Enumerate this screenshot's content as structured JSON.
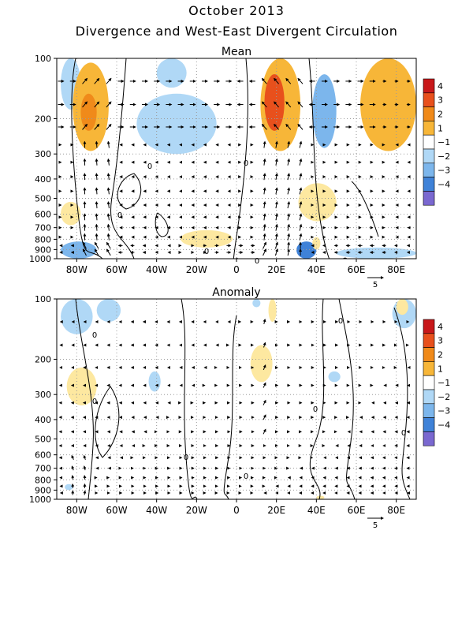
{
  "header": {
    "title": "October 2013",
    "subtitle": "Divergence and West-East Divergent Circulation"
  },
  "colors": {
    "contour_line": "#000000",
    "grid_dotted": "#9a9a9a",
    "divergence_positive": [
      "#fde8a0",
      "#f7b638",
      "#f08a1a",
      "#e8501c",
      "#c8181a"
    ],
    "divergence_negative": [
      "#b0d8f6",
      "#7cb6ec",
      "#3f82d8",
      "#1e4fc2",
      "#7a68d0"
    ]
  },
  "chart_data": [
    {
      "type": "heatmap",
      "title": "Mean",
      "x_ticks": [
        "80W",
        "60W",
        "40W",
        "20W",
        "0",
        "20E",
        "40E",
        "60E",
        "80E"
      ],
      "x_values": [
        -80,
        -60,
        -40,
        -20,
        0,
        20,
        40,
        60,
        80
      ],
      "xlim": [
        -90,
        90
      ],
      "y_ticks": [
        "100",
        "200",
        "300",
        "400",
        "500",
        "600",
        "700",
        "800",
        "900",
        "1000"
      ],
      "y_values": [
        100,
        200,
        300,
        400,
        500,
        600,
        700,
        800,
        900,
        1000
      ],
      "ylim": [
        1000,
        100
      ],
      "y_scale": "log",
      "vector_reference": "5",
      "colorbar": {
        "labels": [
          "4",
          "3",
          "2",
          "1",
          "−1",
          "−2",
          "−3",
          "−4"
        ],
        "levels": [
          4,
          3,
          2,
          1,
          -1,
          -2,
          -3,
          -4
        ]
      },
      "contour_labels": [
        "0",
        "0",
        "0",
        "0",
        "0"
      ],
      "shaded_regions": [
        {
          "sign": "negative",
          "lon": [
            -88,
            -78
          ],
          "lev": [
            100,
            180
          ],
          "level": -1
        },
        {
          "sign": "positive",
          "lon": [
            -82,
            -64
          ],
          "lev": [
            105,
            290
          ],
          "level": 2
        },
        {
          "sign": "positive",
          "lon": [
            -78,
            -70
          ],
          "lev": [
            150,
            230
          ],
          "level": 3
        },
        {
          "sign": "negative",
          "lon": [
            -50,
            -10
          ],
          "lev": [
            150,
            300
          ],
          "level": -1
        },
        {
          "sign": "negative",
          "lon": [
            -40,
            -25
          ],
          "lev": [
            100,
            140
          ],
          "level": -1
        },
        {
          "sign": "positive",
          "lon": [
            12,
            32
          ],
          "lev": [
            100,
            290
          ],
          "level": 2
        },
        {
          "sign": "positive",
          "lon": [
            14,
            24
          ],
          "lev": [
            120,
            230
          ],
          "level": 4
        },
        {
          "sign": "negative",
          "lon": [
            38,
            50
          ],
          "lev": [
            120,
            280
          ],
          "level": -2
        },
        {
          "sign": "positive",
          "lon": [
            62,
            90
          ],
          "lev": [
            100,
            290
          ],
          "level": 2
        },
        {
          "sign": "positive",
          "lon": [
            31,
            50
          ],
          "lev": [
            420,
            650
          ],
          "level": 1
        },
        {
          "sign": "positive",
          "lon": [
            -88,
            -78
          ],
          "lev": [
            520,
            680
          ],
          "level": 1
        },
        {
          "sign": "positive",
          "lon": [
            -28,
            -2
          ],
          "lev": [
            720,
            880
          ],
          "level": 1
        },
        {
          "sign": "negative",
          "lon": [
            -88,
            -70
          ],
          "lev": [
            820,
            1000
          ],
          "level": -2
        },
        {
          "sign": "negative",
          "lon": [
            30,
            40
          ],
          "lev": [
            820,
            1000
          ],
          "level": -3
        },
        {
          "sign": "negative",
          "lon": [
            50,
            90
          ],
          "lev": [
            880,
            1000
          ],
          "level": -1
        },
        {
          "sign": "positive",
          "lon": [
            38,
            42
          ],
          "lev": [
            780,
            900
          ],
          "level": 1
        }
      ]
    },
    {
      "type": "heatmap",
      "title": "Anomaly",
      "x_ticks": [
        "80W",
        "60W",
        "40W",
        "20W",
        "0",
        "20E",
        "40E",
        "60E",
        "80E"
      ],
      "x_values": [
        -80,
        -60,
        -40,
        -20,
        0,
        20,
        40,
        60,
        80
      ],
      "xlim": [
        -90,
        90
      ],
      "y_ticks": [
        "100",
        "200",
        "300",
        "400",
        "500",
        "600",
        "700",
        "800",
        "900",
        "1000"
      ],
      "y_values": [
        100,
        200,
        300,
        400,
        500,
        600,
        700,
        800,
        900,
        1000
      ],
      "ylim": [
        1000,
        100
      ],
      "y_scale": "log",
      "vector_reference": "5",
      "colorbar": {
        "labels": [
          "4",
          "3",
          "2",
          "1",
          "−1",
          "−2",
          "−3",
          "−4"
        ],
        "levels": [
          4,
          3,
          2,
          1,
          -1,
          -2,
          -3,
          -4
        ]
      },
      "contour_labels": [
        "0",
        "0",
        "0",
        "0",
        "0",
        "0",
        "0"
      ],
      "shaded_regions": [
        {
          "sign": "negative",
          "lon": [
            -88,
            -72
          ],
          "lev": [
            100,
            150
          ],
          "level": -1
        },
        {
          "sign": "negative",
          "lon": [
            -70,
            -58
          ],
          "lev": [
            100,
            130
          ],
          "level": -1
        },
        {
          "sign": "positive",
          "lon": [
            -85,
            -70
          ],
          "lev": [
            220,
            340
          ],
          "level": 1
        },
        {
          "sign": "negative",
          "lon": [
            -44,
            -38
          ],
          "lev": [
            230,
            290
          ],
          "level": -1
        },
        {
          "sign": "positive",
          "lon": [
            7,
            18
          ],
          "lev": [
            170,
            260
          ],
          "level": 1
        },
        {
          "sign": "positive",
          "lon": [
            16,
            20
          ],
          "lev": [
            100,
            130
          ],
          "level": 1
        },
        {
          "sign": "negative",
          "lon": [
            8,
            12
          ],
          "lev": [
            100,
            110
          ],
          "level": -1
        },
        {
          "sign": "negative",
          "lon": [
            46,
            52
          ],
          "lev": [
            230,
            260
          ],
          "level": -1
        },
        {
          "sign": "negative",
          "lon": [
            78,
            90
          ],
          "lev": [
            100,
            140
          ],
          "level": -1
        },
        {
          "sign": "positive",
          "lon": [
            80,
            86
          ],
          "lev": [
            100,
            120
          ],
          "level": 1
        },
        {
          "sign": "negative",
          "lon": [
            -86,
            -82
          ],
          "lev": [
            840,
            900
          ],
          "level": -1
        },
        {
          "sign": "positive",
          "lon": [
            40,
            44
          ],
          "lev": [
            960,
            1000
          ],
          "level": 1
        }
      ]
    }
  ]
}
